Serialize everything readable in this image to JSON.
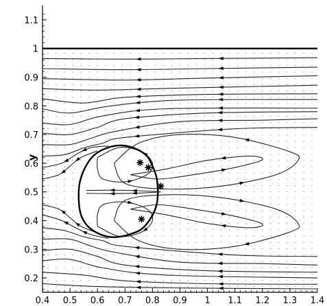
{
  "chart_data": {
    "type": "streamline",
    "title": "",
    "xlabel": "",
    "ylabel": "y",
    "xlim": [
      0.4,
      1.4
    ],
    "ylim": [
      0.15,
      1.15
    ],
    "grid": false,
    "legend": "none",
    "x_ticks": [
      "0.4",
      "0.5",
      "0.6",
      "0.7",
      "0.8",
      "0.9",
      "1",
      "1.1",
      "1.2",
      "1.3",
      "1.4"
    ],
    "y_ticks": [
      "0.2",
      "0.3",
      "0.4",
      "0.5",
      "0.6",
      "0.7",
      "0.8",
      "0.9",
      "1",
      "1.1"
    ],
    "colors": {
      "line": "#000000",
      "streamline": "#222222",
      "dots": "#555555"
    },
    "wall": {
      "y": 1.0,
      "x": [
        0.4,
        1.4
      ]
    },
    "droplet_boundary": [
      [
        0.82,
        0.5
      ],
      [
        0.815,
        0.55
      ],
      [
        0.8,
        0.59
      ],
      [
        0.78,
        0.625
      ],
      [
        0.74,
        0.65
      ],
      [
        0.69,
        0.662
      ],
      [
        0.64,
        0.655
      ],
      [
        0.59,
        0.63
      ],
      [
        0.555,
        0.585
      ],
      [
        0.535,
        0.53
      ],
      [
        0.532,
        0.47
      ],
      [
        0.54,
        0.42
      ],
      [
        0.565,
        0.38
      ],
      [
        0.61,
        0.352
      ],
      [
        0.66,
        0.342
      ],
      [
        0.71,
        0.35
      ],
      [
        0.76,
        0.37
      ],
      [
        0.795,
        0.41
      ],
      [
        0.815,
        0.455
      ],
      [
        0.82,
        0.5
      ]
    ],
    "streamlines": [
      [
        [
          0.4,
          0.965
        ],
        [
          0.7,
          0.963
        ],
        [
          1.0,
          0.965
        ],
        [
          1.4,
          0.968
        ]
      ],
      [
        [
          0.4,
          0.93
        ],
        [
          0.7,
          0.926
        ],
        [
          1.0,
          0.93
        ],
        [
          1.4,
          0.935
        ]
      ],
      [
        [
          0.4,
          0.895
        ],
        [
          0.7,
          0.89
        ],
        [
          1.0,
          0.897
        ],
        [
          1.4,
          0.905
        ]
      ],
      [
        [
          0.4,
          0.86
        ],
        [
          0.6,
          0.855
        ],
        [
          0.9,
          0.862
        ],
        [
          1.4,
          0.872
        ]
      ],
      [
        [
          0.4,
          0.825
        ],
        [
          0.55,
          0.81
        ],
        [
          0.7,
          0.83
        ],
        [
          1.0,
          0.84
        ],
        [
          1.4,
          0.842
        ]
      ],
      [
        [
          0.4,
          0.79
        ],
        [
          0.5,
          0.775
        ],
        [
          0.65,
          0.8
        ],
        [
          0.9,
          0.82
        ],
        [
          1.4,
          0.822
        ]
      ],
      [
        [
          0.4,
          0.74
        ],
        [
          0.5,
          0.735
        ],
        [
          0.62,
          0.765
        ],
        [
          0.85,
          0.79
        ],
        [
          1.4,
          0.792
        ]
      ],
      [
        [
          0.4,
          0.705
        ],
        [
          0.5,
          0.7
        ],
        [
          0.6,
          0.725
        ],
        [
          0.7,
          0.755
        ],
        [
          1.0,
          0.775
        ],
        [
          1.4,
          0.78
        ]
      ],
      [
        [
          0.4,
          0.665
        ],
        [
          0.5,
          0.665
        ],
        [
          0.58,
          0.688
        ],
        [
          0.66,
          0.71
        ],
        [
          0.9,
          0.745
        ],
        [
          1.2,
          0.75
        ],
        [
          1.4,
          0.755
        ]
      ],
      [
        [
          0.4,
          0.625
        ],
        [
          0.48,
          0.63
        ],
        [
          0.555,
          0.655
        ],
        [
          0.62,
          0.67
        ],
        [
          0.7,
          0.69
        ],
        [
          1.1,
          0.72
        ],
        [
          1.4,
          0.725
        ]
      ],
      [
        [
          0.4,
          0.585
        ],
        [
          0.47,
          0.6
        ],
        [
          0.53,
          0.635
        ],
        [
          0.58,
          0.655
        ],
        [
          0.64,
          0.66
        ]
      ],
      [
        [
          0.4,
          0.545
        ],
        [
          0.46,
          0.56
        ],
        [
          0.5,
          0.59
        ],
        [
          0.54,
          0.62
        ],
        [
          0.6,
          0.643
        ]
      ],
      [
        [
          0.4,
          0.455
        ],
        [
          0.46,
          0.44
        ],
        [
          0.5,
          0.41
        ],
        [
          0.54,
          0.38
        ],
        [
          0.6,
          0.357
        ]
      ],
      [
        [
          0.4,
          0.42
        ],
        [
          0.47,
          0.4
        ],
        [
          0.53,
          0.37
        ],
        [
          0.58,
          0.35
        ],
        [
          0.64,
          0.338
        ]
      ],
      [
        [
          0.4,
          0.375
        ],
        [
          0.48,
          0.365
        ],
        [
          0.555,
          0.342
        ],
        [
          0.62,
          0.33
        ],
        [
          0.7,
          0.31
        ],
        [
          1.1,
          0.28
        ],
        [
          1.4,
          0.275
        ]
      ],
      [
        [
          0.4,
          0.335
        ],
        [
          0.5,
          0.335
        ],
        [
          0.58,
          0.31
        ],
        [
          0.66,
          0.29
        ],
        [
          0.9,
          0.255
        ],
        [
          1.2,
          0.25
        ],
        [
          1.4,
          0.245
        ]
      ],
      [
        [
          0.4,
          0.295
        ],
        [
          0.5,
          0.3
        ],
        [
          0.6,
          0.275
        ],
        [
          0.7,
          0.245
        ],
        [
          1.0,
          0.225
        ],
        [
          1.4,
          0.22
        ]
      ],
      [
        [
          0.4,
          0.26
        ],
        [
          0.5,
          0.265
        ],
        [
          0.62,
          0.235
        ],
        [
          0.85,
          0.21
        ],
        [
          1.4,
          0.2
        ]
      ],
      [
        [
          0.4,
          0.22
        ],
        [
          0.55,
          0.21
        ],
        [
          0.7,
          0.19
        ],
        [
          1.0,
          0.18
        ],
        [
          1.4,
          0.178
        ]
      ],
      [
        [
          0.4,
          0.18
        ],
        [
          0.6,
          0.17
        ],
        [
          0.9,
          0.165
        ],
        [
          1.4,
          0.162
        ]
      ]
    ],
    "inner_loops": [
      [
        [
          0.72,
          0.56
        ],
        [
          0.85,
          0.58
        ],
        [
          1.0,
          0.61
        ],
        [
          1.15,
          0.625
        ],
        [
          1.2,
          0.612
        ],
        [
          1.1,
          0.585
        ],
        [
          0.95,
          0.56
        ],
        [
          0.82,
          0.545
        ],
        [
          0.72,
          0.56
        ]
      ],
      [
        [
          0.66,
          0.6
        ],
        [
          0.75,
          0.67
        ],
        [
          0.9,
          0.7
        ],
        [
          1.1,
          0.69
        ],
        [
          1.3,
          0.64
        ],
        [
          1.33,
          0.61
        ],
        [
          1.25,
          0.56
        ],
        [
          1.05,
          0.52
        ],
        [
          0.85,
          0.51
        ],
        [
          0.7,
          0.53
        ],
        [
          0.66,
          0.6
        ]
      ],
      [
        [
          0.72,
          0.44
        ],
        [
          0.85,
          0.42
        ],
        [
          1.0,
          0.39
        ],
        [
          1.15,
          0.375
        ],
        [
          1.2,
          0.388
        ],
        [
          1.1,
          0.415
        ],
        [
          0.95,
          0.44
        ],
        [
          0.82,
          0.455
        ],
        [
          0.72,
          0.44
        ]
      ],
      [
        [
          0.66,
          0.4
        ],
        [
          0.75,
          0.33
        ],
        [
          0.9,
          0.3
        ],
        [
          1.1,
          0.31
        ],
        [
          1.3,
          0.36
        ],
        [
          1.33,
          0.39
        ],
        [
          1.25,
          0.44
        ],
        [
          1.05,
          0.48
        ],
        [
          0.85,
          0.49
        ],
        [
          0.7,
          0.47
        ],
        [
          0.66,
          0.4
        ]
      ],
      [
        [
          0.6,
          0.62
        ],
        [
          0.68,
          0.655
        ],
        [
          0.76,
          0.64
        ],
        [
          0.8,
          0.6
        ],
        [
          0.78,
          0.56
        ],
        [
          0.7,
          0.535
        ],
        [
          0.62,
          0.545
        ],
        [
          0.6,
          0.58
        ],
        [
          0.6,
          0.62
        ]
      ],
      [
        [
          0.6,
          0.38
        ],
        [
          0.68,
          0.345
        ],
        [
          0.76,
          0.36
        ],
        [
          0.8,
          0.4
        ],
        [
          0.78,
          0.44
        ],
        [
          0.7,
          0.465
        ],
        [
          0.62,
          0.455
        ],
        [
          0.6,
          0.42
        ],
        [
          0.6,
          0.38
        ]
      ],
      [
        [
          0.56,
          0.505
        ],
        [
          0.65,
          0.506
        ],
        [
          0.75,
          0.504
        ],
        [
          0.83,
          0.5
        ]
      ],
      [
        [
          0.56,
          0.495
        ],
        [
          0.65,
          0.494
        ],
        [
          0.75,
          0.496
        ],
        [
          0.83,
          0.5
        ]
      ]
    ],
    "markers": [
      {
        "x": 0.755,
        "y": 0.602
      },
      {
        "x": 0.785,
        "y": 0.585
      },
      {
        "x": 0.76,
        "y": 0.405
      },
      {
        "x": 0.83,
        "y": 0.52
      }
    ],
    "arrow_positions": [
      0.35,
      0.65
    ]
  }
}
